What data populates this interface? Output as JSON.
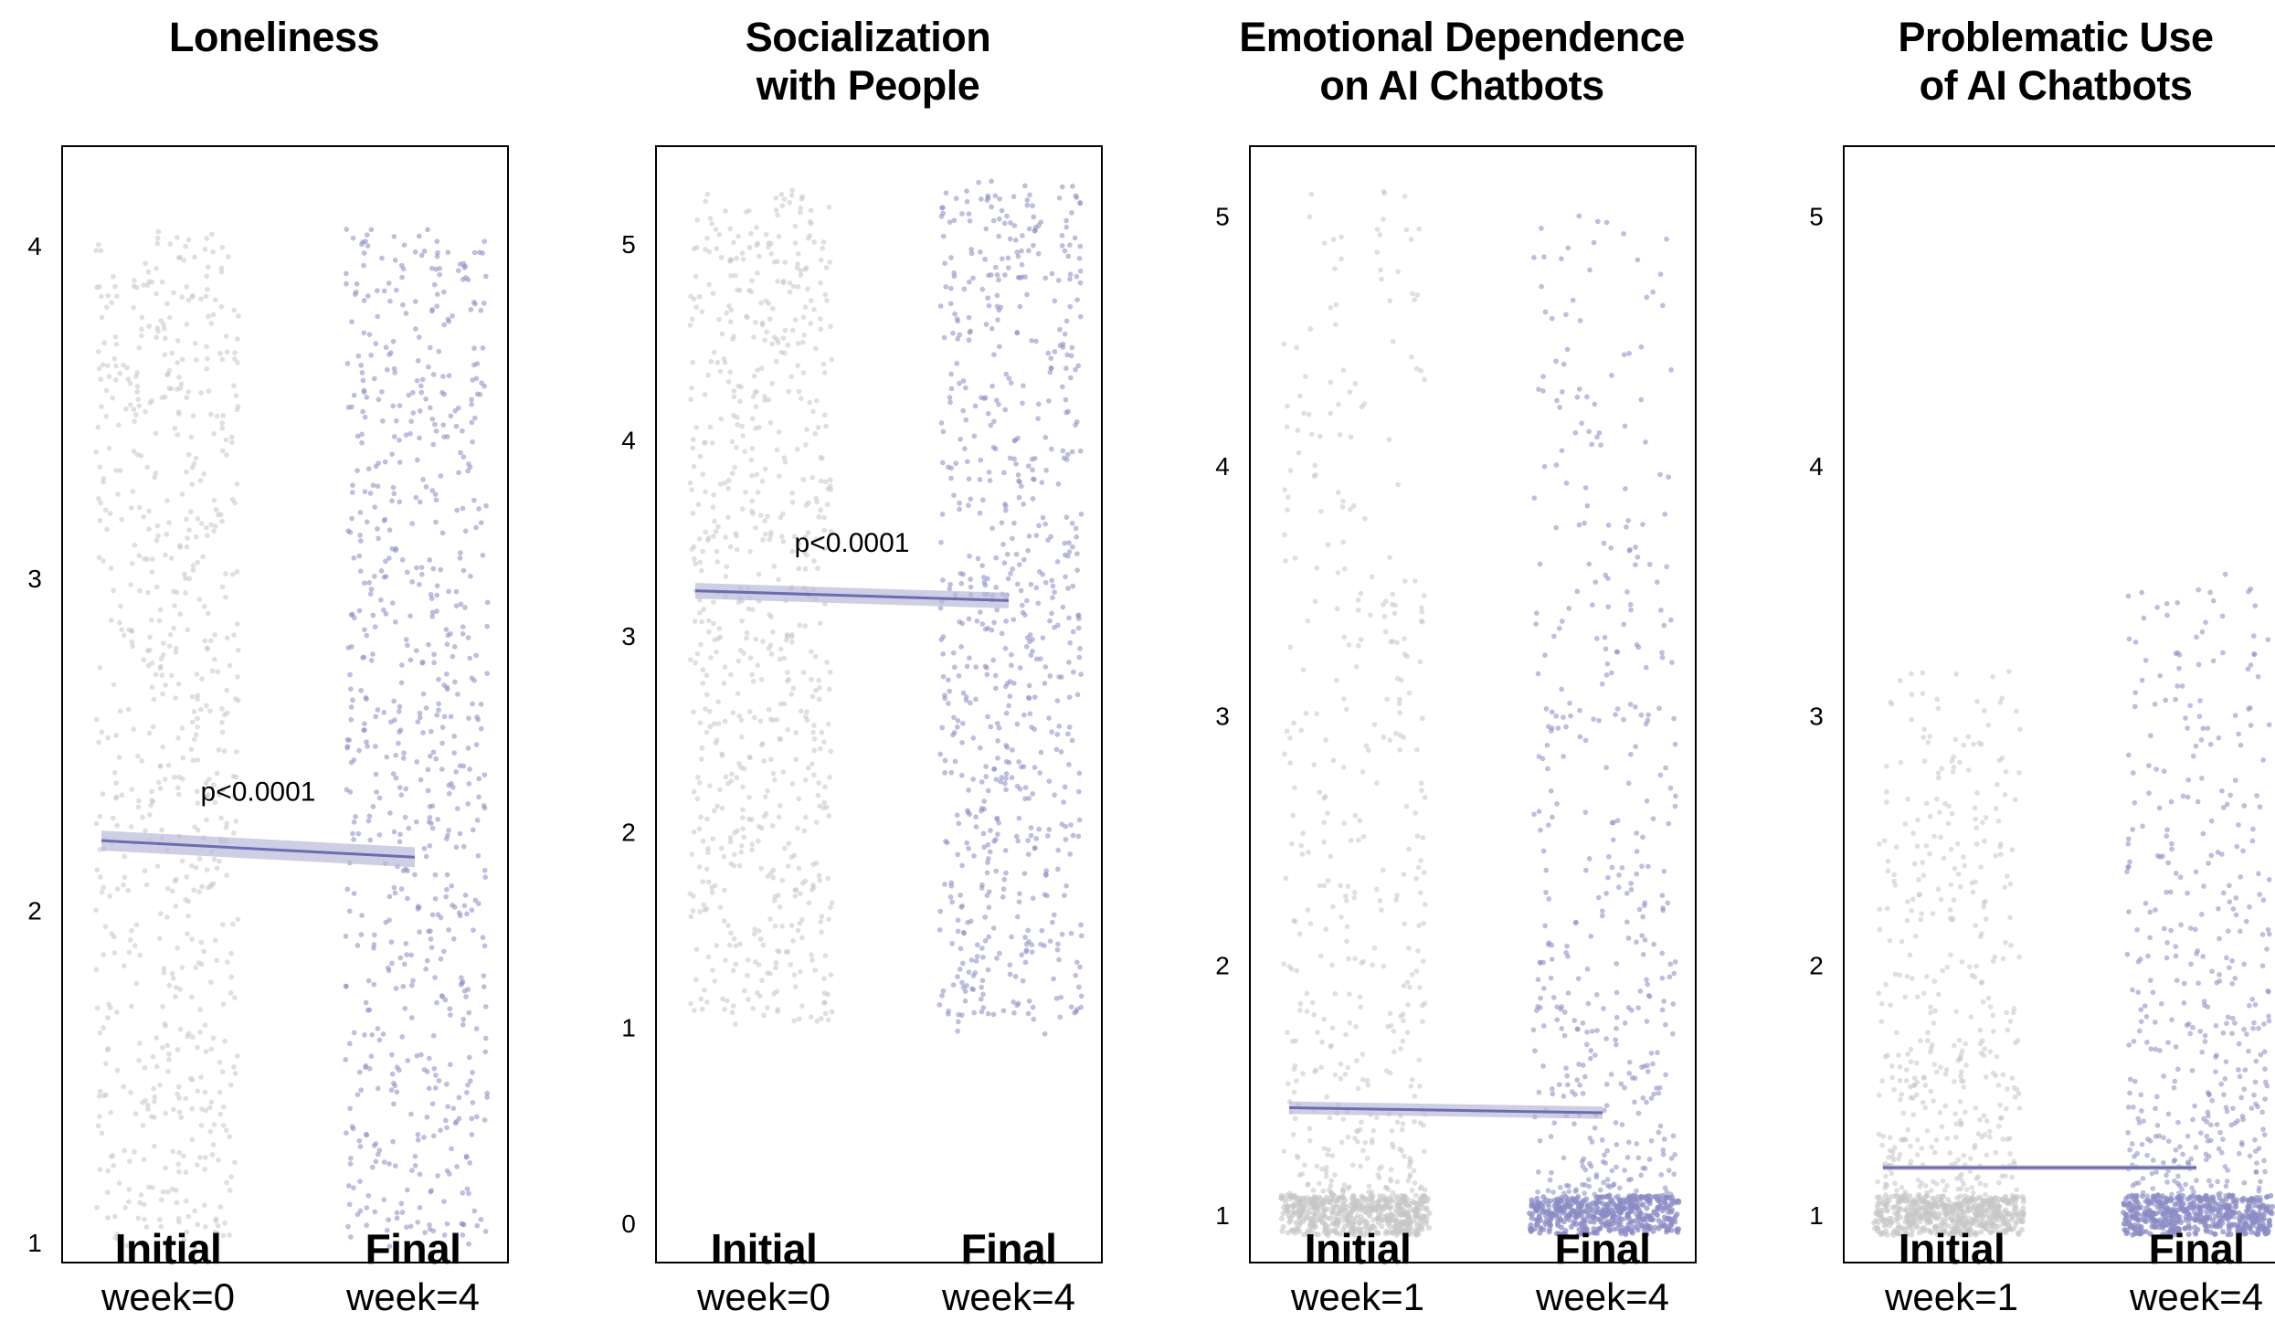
{
  "colors": {
    "initial": "#c6c6c6",
    "final": "#8a8cc4",
    "line": "#6b6db0",
    "band": "#b9bad8"
  },
  "chart_data": [
    {
      "type": "scatter",
      "title_lines": [
        "Loneliness"
      ],
      "categories": [
        {
          "name": "Initial",
          "sub": "week=0"
        },
        {
          "name": "Final",
          "sub": "week=4"
        }
      ],
      "ylim": [
        0.94,
        4.3
      ],
      "yticks": [
        1,
        2,
        3,
        4
      ],
      "initial_range": [
        1.0,
        4.05
      ],
      "final_range": [
        1.0,
        4.05
      ],
      "fit": {
        "initial": 2.21,
        "final": 2.16,
        "ci": 0.03
      },
      "pvalue": "p<0.0001",
      "pvalue_y": 2.33
    },
    {
      "type": "scatter",
      "title_lines": [
        "Socialization",
        "with People"
      ],
      "categories": [
        {
          "name": "Initial",
          "sub": "week=0"
        },
        {
          "name": "Final",
          "sub": "week=4"
        }
      ],
      "ylim": [
        -0.2,
        5.5
      ],
      "yticks": [
        0,
        1,
        2,
        3,
        4,
        5
      ],
      "initial_range": [
        1.0,
        5.25
      ],
      "final_range": [
        1.0,
        5.3
      ],
      "fit": {
        "initial": 3.23,
        "final": 3.18,
        "ci": 0.04
      },
      "pvalue": "p<0.0001",
      "pvalue_y": 3.43
    },
    {
      "type": "scatter",
      "title_lines": [
        "Emotional Dependence",
        "on AI Chatbots"
      ],
      "categories": [
        {
          "name": "Initial",
          "sub": "week=1"
        },
        {
          "name": "Final",
          "sub": "week=4"
        }
      ],
      "ylim": [
        0.81,
        5.28
      ],
      "yticks": [
        1,
        2,
        3,
        4,
        5
      ],
      "initial_range": [
        1.0,
        5.1
      ],
      "final_range": [
        1.0,
        5.05
      ],
      "floor_cluster": true,
      "fit": {
        "initial": 1.43,
        "final": 1.41,
        "ci": 0.025
      },
      "pvalue": "",
      "pvalue_y": 0
    },
    {
      "type": "scatter",
      "title_lines": [
        "Problematic Use",
        "of AI Chatbots"
      ],
      "categories": [
        {
          "name": "Initial",
          "sub": "week=1"
        },
        {
          "name": "Final",
          "sub": "week=4"
        }
      ],
      "ylim": [
        0.81,
        5.28
      ],
      "yticks": [
        1,
        2,
        3,
        4,
        5
      ],
      "initial_range": [
        1.0,
        3.2
      ],
      "final_range": [
        1.0,
        3.55
      ],
      "floor_cluster": true,
      "fit": {
        "initial": 1.19,
        "final": 1.19,
        "ci": 0.01
      },
      "pvalue": "",
      "pvalue_y": 0
    }
  ]
}
